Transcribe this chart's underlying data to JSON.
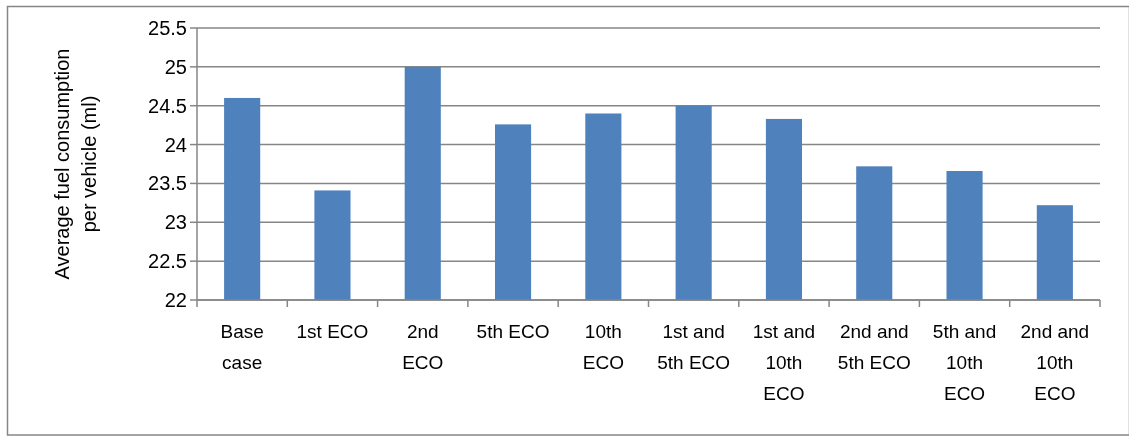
{
  "chart_data": {
    "type": "bar",
    "ylabel": "Average fuel consumption per vehicle (ml)",
    "categories": [
      "Base case",
      "1st ECO",
      "2nd ECO",
      "5th ECO",
      "10th ECO",
      "1st and 5th ECO",
      "1st and 10th ECO",
      "2nd and 5th ECO",
      "5th and 10th ECO",
      "2nd and 10th ECO"
    ],
    "values": [
      24.6,
      23.41,
      25.0,
      24.26,
      24.4,
      24.5,
      24.33,
      23.72,
      23.66,
      23.22
    ],
    "color": "#4f81bd",
    "ylim": [
      22,
      25.5
    ],
    "yticks": [
      22,
      22.5,
      23,
      23.5,
      24,
      24.5,
      25,
      25.5
    ],
    "grid": "y"
  }
}
